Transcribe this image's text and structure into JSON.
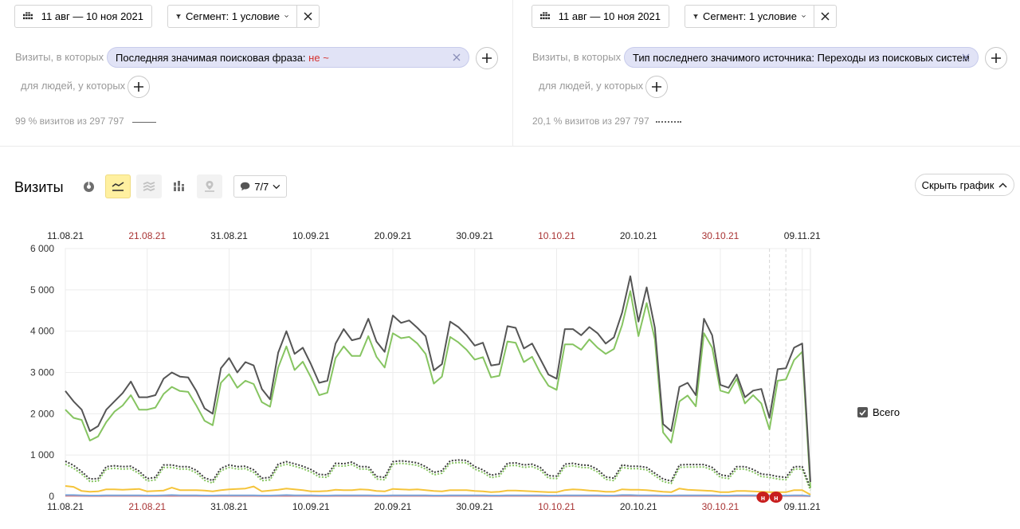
{
  "segments": [
    {
      "date_range": "11 авг — 10 ноя 2021",
      "segment_label": "Сегмент: 1 условие",
      "visits_label": "Визиты, в которых",
      "chip_text": "Последняя значимая поисковая фраза:",
      "chip_negation": "не ~",
      "people_label": "для людей, у которых",
      "stat": "99 % визитов из 297 797",
      "legend_style": "solid"
    },
    {
      "date_range": "11 авг — 10 ноя 2021",
      "segment_label": "Сегмент: 1 условие",
      "visits_label": "Визиты, в которых",
      "chip_text": "Тип последнего значимого источника: Переходы из поисковых систем",
      "chip_negation": "",
      "people_label": "для людей, у которых",
      "stat": "20,1 % визитов из 297 797",
      "legend_style": "dotted"
    }
  ],
  "report": {
    "title": "Визиты",
    "annotations_label": "7/7",
    "hide_chart_label": "Скрыть график",
    "icons": [
      "pie-chart-icon",
      "line-chart-icon",
      "stacked-area-icon",
      "stacked-bar-icon",
      "map-icon",
      "comment-icon",
      "chevron-down-icon",
      "chevron-up-icon"
    ]
  },
  "chart_data": {
    "type": "line",
    "ylim": [
      0,
      6000
    ],
    "yticks": [
      "0",
      "1 000",
      "2 000",
      "3 000",
      "4 000",
      "5 000",
      "6 000"
    ],
    "ytick_values": [
      0,
      1000,
      2000,
      3000,
      4000,
      5000,
      6000
    ],
    "x_tick_labels": [
      "11.08.21",
      "21.08.21",
      "31.08.21",
      "10.09.21",
      "20.09.21",
      "30.09.21",
      "10.10.21",
      "20.10.21",
      "30.10.21",
      "09.11.21"
    ],
    "x_tick_index": [
      0,
      10,
      20,
      30,
      40,
      50,
      60,
      70,
      80,
      90
    ],
    "weekend_ticks": [
      1,
      6,
      8
    ],
    "x_start": "11.08.21",
    "x_end": "10.11.21",
    "legend": [
      "Всего"
    ],
    "annotation_marker_label": "н",
    "series": [
      {
        "color": "#555555",
        "dash": "solid",
        "values": [
          2550,
          2300,
          2100,
          1580,
          1700,
          2100,
          2300,
          2500,
          2780,
          2400,
          2400,
          2450,
          2850,
          3000,
          2900,
          2880,
          2550,
          2130,
          2000,
          3100,
          3350,
          3000,
          3250,
          3170,
          2600,
          2350,
          3480,
          4000,
          3450,
          3600,
          3200,
          2750,
          2800,
          3700,
          4050,
          3780,
          3830,
          4300,
          3750,
          3500,
          4380,
          4200,
          4260,
          4080,
          3880,
          3050,
          3200,
          4230,
          4100,
          3900,
          3650,
          3720,
          3170,
          3200,
          4120,
          4080,
          3580,
          3700,
          3330,
          2950,
          2850,
          4050,
          4050,
          3900,
          4100,
          3950,
          3700,
          3850,
          4450,
          5330,
          4230,
          5060,
          4080,
          1750,
          1580,
          2650,
          2750,
          2450,
          4300,
          3900,
          2700,
          2630,
          2950,
          2400,
          2560,
          2600,
          1900,
          3080,
          3100,
          3600,
          3700,
          350
        ]
      },
      {
        "color": "#86c461",
        "dash": "solid",
        "values": [
          2100,
          1900,
          1850,
          1350,
          1450,
          1800,
          2050,
          2200,
          2450,
          2100,
          2100,
          2150,
          2480,
          2650,
          2550,
          2530,
          2200,
          1830,
          1720,
          2750,
          2960,
          2630,
          2800,
          2720,
          2280,
          2170,
          3120,
          3630,
          3060,
          3260,
          2880,
          2450,
          2510,
          3350,
          3630,
          3400,
          3400,
          3880,
          3380,
          3120,
          3950,
          3830,
          3860,
          3700,
          3450,
          2730,
          2900,
          3860,
          3730,
          3550,
          3310,
          3370,
          2880,
          2920,
          3750,
          3720,
          3250,
          3380,
          2990,
          2680,
          2580,
          3680,
          3680,
          3550,
          3800,
          3600,
          3450,
          3570,
          4150,
          4970,
          3880,
          4680,
          3800,
          1550,
          1300,
          2300,
          2440,
          2180,
          3950,
          3600,
          2560,
          2500,
          2850,
          2250,
          2450,
          2250,
          1620,
          2800,
          2830,
          3300,
          3500,
          200
        ]
      },
      {
        "color": "#3c3c3c",
        "dash": "dotted",
        "values": [
          850,
          750,
          600,
          420,
          430,
          720,
          740,
          720,
          730,
          610,
          430,
          460,
          760,
          760,
          720,
          720,
          630,
          450,
          380,
          680,
          760,
          720,
          730,
          640,
          440,
          460,
          780,
          840,
          790,
          730,
          650,
          530,
          520,
          800,
          790,
          830,
          720,
          720,
          480,
          460,
          840,
          860,
          840,
          810,
          720,
          580,
          620,
          860,
          880,
          870,
          720,
          640,
          510,
          550,
          800,
          810,
          760,
          780,
          700,
          500,
          490,
          780,
          800,
          760,
          750,
          650,
          470,
          440,
          760,
          730,
          730,
          700,
          560,
          420,
          370,
          760,
          770,
          770,
          770,
          700,
          520,
          490,
          720,
          720,
          650,
          540,
          520,
          480,
          460,
          720,
          720,
          200
        ]
      },
      {
        "color": "#86c461",
        "dash": "dotted",
        "values": [
          780,
          680,
          540,
          360,
          370,
          660,
          680,
          660,
          670,
          550,
          370,
          400,
          700,
          700,
          660,
          660,
          570,
          390,
          320,
          620,
          700,
          660,
          670,
          580,
          380,
          400,
          720,
          780,
          730,
          670,
          590,
          470,
          460,
          740,
          730,
          770,
          660,
          660,
          420,
          400,
          780,
          800,
          780,
          750,
          660,
          520,
          560,
          800,
          820,
          810,
          660,
          580,
          450,
          490,
          740,
          750,
          700,
          720,
          640,
          440,
          430,
          720,
          740,
          700,
          690,
          590,
          410,
          380,
          700,
          670,
          670,
          640,
          500,
          360,
          310,
          700,
          710,
          710,
          710,
          640,
          460,
          430,
          660,
          660,
          590,
          480,
          460,
          420,
          400,
          660,
          660,
          150
        ]
      },
      {
        "color": "#f5c43a",
        "dash": "solid",
        "values": [
          250,
          230,
          130,
          110,
          120,
          170,
          170,
          160,
          170,
          180,
          120,
          130,
          140,
          210,
          150,
          150,
          150,
          140,
          120,
          150,
          170,
          180,
          190,
          240,
          120,
          140,
          160,
          190,
          170,
          150,
          120,
          120,
          130,
          160,
          150,
          150,
          170,
          160,
          130,
          120,
          180,
          170,
          160,
          170,
          150,
          130,
          120,
          150,
          150,
          150,
          130,
          120,
          100,
          110,
          140,
          140,
          130,
          120,
          110,
          100,
          100,
          150,
          170,
          160,
          140,
          130,
          110,
          110,
          170,
          160,
          160,
          150,
          130,
          110,
          100,
          190,
          160,
          150,
          140,
          130,
          100,
          100,
          130,
          130,
          120,
          110,
          100,
          100,
          100,
          150,
          150,
          40
        ]
      },
      {
        "color": "#7aa7dd",
        "dash": "solid",
        "values": [
          30,
          30,
          25,
          20,
          20,
          25,
          25,
          25,
          25,
          25,
          20,
          20,
          25,
          30,
          25,
          25,
          25,
          20,
          20,
          25,
          25,
          25,
          25,
          25,
          20,
          20,
          25,
          30,
          25,
          25,
          25,
          20,
          20,
          25,
          25,
          25,
          25,
          25,
          20,
          20,
          25,
          25,
          25,
          25,
          25,
          20,
          20,
          25,
          25,
          25,
          25,
          25,
          20,
          20,
          25,
          25,
          25,
          25,
          25,
          20,
          20,
          25,
          25,
          25,
          25,
          25,
          20,
          20,
          30,
          30,
          25,
          25,
          25,
          20,
          20,
          25,
          25,
          25,
          25,
          25,
          20,
          20,
          25,
          25,
          25,
          20,
          20,
          20,
          20,
          25,
          25,
          10
        ]
      },
      {
        "color": "#e06666",
        "dash": "solid",
        "values": [
          15,
          15,
          12,
          10,
          10,
          12,
          12,
          12,
          12,
          12,
          10,
          10,
          12,
          15,
          12,
          12,
          12,
          10,
          10,
          12,
          12,
          12,
          12,
          12,
          10,
          10,
          12,
          15,
          12,
          12,
          12,
          10,
          10,
          12,
          12,
          12,
          12,
          12,
          10,
          10,
          12,
          12,
          12,
          12,
          12,
          10,
          10,
          12,
          12,
          12,
          12,
          12,
          10,
          10,
          12,
          12,
          12,
          12,
          12,
          10,
          10,
          12,
          12,
          12,
          12,
          12,
          10,
          10,
          15,
          15,
          12,
          12,
          12,
          10,
          10,
          12,
          12,
          12,
          12,
          12,
          10,
          10,
          12,
          12,
          12,
          10,
          10,
          10,
          10,
          12,
          12,
          5
        ]
      }
    ]
  }
}
